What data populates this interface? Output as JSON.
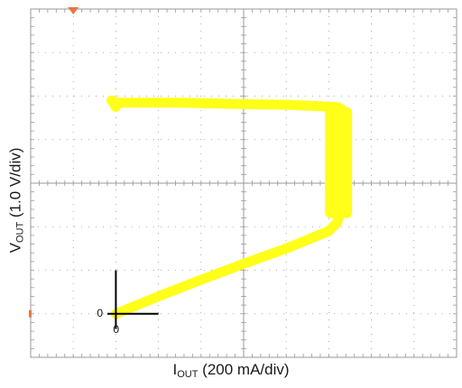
{
  "chart_data": {
    "type": "line",
    "xlabel_main": "I",
    "xlabel_sub": "OUT",
    "xlabel_rest": " (200 mA/div)",
    "ylabel_main": "V",
    "ylabel_sub": "OUT",
    "ylabel_rest": " (1.0 V/div)",
    "origin_x_label": "0",
    "origin_y_label": "0",
    "divisions": {
      "x": 10,
      "y": 8
    },
    "origin_div": {
      "x": 2,
      "y": 1
    },
    "trace_color": "#ffff1a",
    "grid_color": "#9a9a9a",
    "series": [
      {
        "x": [
          0,
          200,
          400,
          600,
          800,
          1000,
          1040,
          1060,
          1060,
          1050,
          1040,
          1040,
          1050,
          1060,
          1040,
          820,
          560,
          300,
          0,
          -20,
          0
        ],
        "y": [
          0,
          0.4,
          0.78,
          1.15,
          1.5,
          1.9,
          2.1,
          2.5,
          3.0,
          3.5,
          4.0,
          4.5,
          4.7,
          4.7,
          4.75,
          4.8,
          4.82,
          4.85,
          4.85,
          4.9,
          4.75
        ]
      }
    ]
  }
}
